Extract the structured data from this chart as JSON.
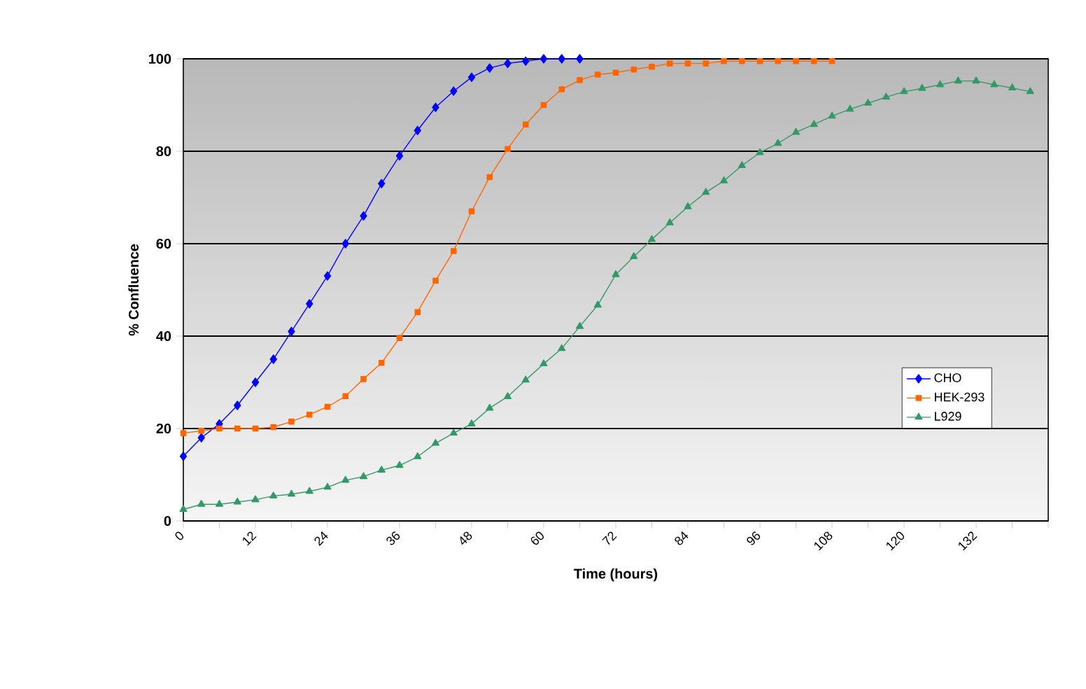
{
  "chart_data": {
    "type": "line",
    "xlabel": "Time (hours)",
    "ylabel": "% Confluence",
    "xlim": [
      0,
      144
    ],
    "ylim": [
      0,
      100
    ],
    "xticks": [
      0,
      {
        "value": 6,
        "label": null
      },
      12,
      {
        "value": 18,
        "label": null
      },
      24,
      {
        "value": 30,
        "label": null
      },
      36,
      {
        "value": 42,
        "label": null
      },
      48,
      {
        "value": 54,
        "label": null
      },
      60,
      {
        "value": 66,
        "label": null
      },
      72,
      {
        "value": 78,
        "label": null
      },
      84,
      {
        "value": 90,
        "label": null
      },
      96,
      {
        "value": 102,
        "label": null
      },
      108,
      {
        "value": 114,
        "label": null
      },
      120,
      {
        "value": 126,
        "label": null
      },
      132,
      {
        "value": 138,
        "label": null
      },
      {
        "value": 144,
        "label": null
      }
    ],
    "yticks": [
      0,
      20,
      40,
      60,
      80,
      100
    ],
    "grid": "y",
    "legend": "bottom right",
    "line_style": "solid",
    "series": [
      {
        "name": "CHO",
        "color": "#0000ff",
        "marker": "diamond",
        "x": [
          0,
          3,
          6,
          9,
          12,
          15,
          18,
          21,
          24,
          27,
          30,
          33,
          36,
          39,
          42,
          45,
          48,
          51,
          54,
          57,
          60,
          63,
          66
        ],
        "values": [
          14,
          18,
          21,
          25,
          30,
          35,
          41,
          47,
          53,
          60,
          66,
          73,
          79,
          84.5,
          89.5,
          93,
          96,
          98,
          99,
          99.5,
          100,
          100,
          100
        ]
      },
      {
        "name": "HEK-293",
        "color": "#ff6600",
        "marker": "square",
        "x": [
          0,
          3,
          6,
          9,
          12,
          15,
          18,
          21,
          24,
          27,
          30,
          33,
          36,
          39,
          42,
          45,
          48,
          51,
          54,
          57,
          60,
          63,
          66,
          69,
          72,
          75,
          78,
          81,
          84,
          87,
          90,
          93,
          96,
          99,
          102,
          105,
          108
        ],
        "values": [
          19,
          19.5,
          20,
          20,
          20,
          20.3,
          21.5,
          23,
          24.7,
          27,
          30.7,
          34.2,
          39.6,
          45.2,
          52,
          58.4,
          67,
          74.4,
          80.5,
          85.8,
          90,
          93.4,
          95.4,
          96.6,
          97,
          97.7,
          98.3,
          99,
          99,
          99,
          99.5,
          99.5,
          99.5,
          99.5,
          99.5,
          99.5,
          99.5
        ]
      },
      {
        "name": "L929",
        "color": "#339966",
        "marker": "triangle",
        "x": [
          0,
          3,
          6,
          9,
          12,
          15,
          18,
          21,
          24,
          27,
          30,
          33,
          36,
          39,
          42,
          45,
          48,
          51,
          54,
          57,
          60,
          63,
          66,
          69,
          72,
          75,
          78,
          81,
          84,
          87,
          90,
          93,
          96,
          99,
          102,
          105,
          108,
          111,
          114,
          117,
          120,
          123,
          126,
          129,
          132,
          135,
          138,
          141
        ],
        "values": [
          2.5,
          3.6,
          3.6,
          4.1,
          4.6,
          5.4,
          5.8,
          6.4,
          7.3,
          8.8,
          9.6,
          11,
          12,
          13.9,
          16.8,
          19,
          21,
          24.4,
          26.9,
          30.5,
          34,
          37.3,
          42.1,
          46.7,
          53.3,
          57.2,
          60.9,
          64.5,
          68,
          71.1,
          73.6,
          76.9,
          79.7,
          81.7,
          84.1,
          85.8,
          87.6,
          89.1,
          90.4,
          91.7,
          92.9,
          93.6,
          94.4,
          95.2,
          95.2,
          94.4,
          93.7,
          92.9
        ]
      }
    ]
  }
}
